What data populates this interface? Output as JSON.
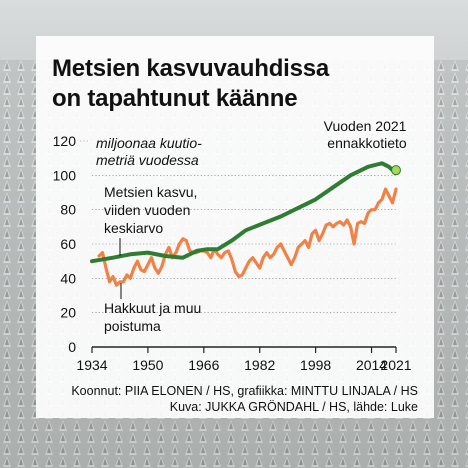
{
  "title_lines": [
    "Metsien kasvuvauhdissa",
    "on tapahtunut käänne"
  ],
  "ylabel_lines": [
    "miljoonaa kuutio-",
    "metriä vuodessa"
  ],
  "forecast_lines": [
    "Vuoden 2021",
    "ennakkotieto"
  ],
  "credits": [
    "Koonnut: PIIA ELONEN / HS, grafiikka: MINTTU LINJALA / HS",
    "Kuva: JUKKA GRÖNDAHL / HS, lähde: Luke"
  ],
  "colors": {
    "growth": "#2e7d32",
    "harvest": "#f08246",
    "forecast_dot": "#a6d95a"
  },
  "chart_data": {
    "type": "line",
    "xlim": [
      1934,
      2021
    ],
    "ylim": [
      0,
      120
    ],
    "x_ticks": [
      1934,
      1950,
      1966,
      1982,
      1998,
      2014,
      2021
    ],
    "y_ticks": [
      0,
      20,
      40,
      60,
      80,
      100,
      120
    ],
    "series": [
      {
        "name": "Metsien kasvu, viiden vuoden keskiarvo",
        "label_lines": [
          "Metsien kasvu,",
          "viiden vuoden",
          "keskiarvo"
        ],
        "color": "#2e7d32",
        "points": [
          [
            1934,
            50
          ],
          [
            1940,
            52
          ],
          [
            1945,
            54
          ],
          [
            1950,
            55
          ],
          [
            1955,
            53
          ],
          [
            1960,
            52
          ],
          [
            1964,
            56
          ],
          [
            1967,
            57
          ],
          [
            1970,
            57
          ],
          [
            1974,
            62
          ],
          [
            1978,
            68
          ],
          [
            1983,
            72
          ],
          [
            1988,
            76
          ],
          [
            1993,
            81
          ],
          [
            1998,
            86
          ],
          [
            2003,
            93
          ],
          [
            2008,
            100
          ],
          [
            2013,
            105
          ],
          [
            2015,
            106
          ],
          [
            2017,
            107
          ],
          [
            2019,
            105
          ],
          [
            2020,
            103
          ]
        ]
      },
      {
        "name": "Hakkuut ja muu poistuma",
        "label_lines": [
          "Hakkuut ja muu",
          "poistuma"
        ],
        "color": "#f08246",
        "points": [
          [
            1936,
            53
          ],
          [
            1937,
            55
          ],
          [
            1938,
            46
          ],
          [
            1939,
            38
          ],
          [
            1940,
            41
          ],
          [
            1941,
            36
          ],
          [
            1942,
            38
          ],
          [
            1943,
            38
          ],
          [
            1944,
            42
          ],
          [
            1945,
            40
          ],
          [
            1946,
            46
          ],
          [
            1947,
            50
          ],
          [
            1948,
            45
          ],
          [
            1949,
            44
          ],
          [
            1950,
            48
          ],
          [
            1951,
            52
          ],
          [
            1952,
            46
          ],
          [
            1953,
            43
          ],
          [
            1954,
            47
          ],
          [
            1955,
            54
          ],
          [
            1956,
            58
          ],
          [
            1957,
            52
          ],
          [
            1958,
            55
          ],
          [
            1959,
            60
          ],
          [
            1960,
            63
          ],
          [
            1961,
            62
          ],
          [
            1962,
            56
          ],
          [
            1963,
            55
          ],
          [
            1964,
            55
          ],
          [
            1965,
            56
          ],
          [
            1966,
            56
          ],
          [
            1967,
            55
          ],
          [
            1968,
            52
          ],
          [
            1969,
            57
          ],
          [
            1970,
            54
          ],
          [
            1971,
            52
          ],
          [
            1972,
            55
          ],
          [
            1973,
            56
          ],
          [
            1974,
            51
          ],
          [
            1975,
            44
          ],
          [
            1976,
            41
          ],
          [
            1977,
            42
          ],
          [
            1978,
            46
          ],
          [
            1979,
            50
          ],
          [
            1980,
            52
          ],
          [
            1981,
            49
          ],
          [
            1982,
            46
          ],
          [
            1983,
            52
          ],
          [
            1984,
            55
          ],
          [
            1985,
            52
          ],
          [
            1986,
            54
          ],
          [
            1987,
            58
          ],
          [
            1988,
            60
          ],
          [
            1989,
            56
          ],
          [
            1990,
            52
          ],
          [
            1991,
            48
          ],
          [
            1992,
            52
          ],
          [
            1993,
            58
          ],
          [
            1994,
            60
          ],
          [
            1995,
            62
          ],
          [
            1996,
            58
          ],
          [
            1997,
            66
          ],
          [
            1998,
            68
          ],
          [
            1999,
            62
          ],
          [
            2000,
            66
          ],
          [
            2001,
            71
          ],
          [
            2002,
            72
          ],
          [
            2003,
            70
          ],
          [
            2004,
            72
          ],
          [
            2005,
            73
          ],
          [
            2006,
            71
          ],
          [
            2007,
            74
          ],
          [
            2008,
            70
          ],
          [
            2009,
            60
          ],
          [
            2010,
            72
          ],
          [
            2011,
            73
          ],
          [
            2012,
            72
          ],
          [
            2013,
            78
          ],
          [
            2014,
            80
          ],
          [
            2015,
            80
          ],
          [
            2016,
            84
          ],
          [
            2017,
            86
          ],
          [
            2018,
            92
          ],
          [
            2019,
            88
          ],
          [
            2020,
            84
          ],
          [
            2021,
            92
          ]
        ]
      }
    ],
    "annotations": [
      {
        "text": "Vuoden 2021 ennakkotieto",
        "x": 2021,
        "y": 103
      }
    ]
  }
}
